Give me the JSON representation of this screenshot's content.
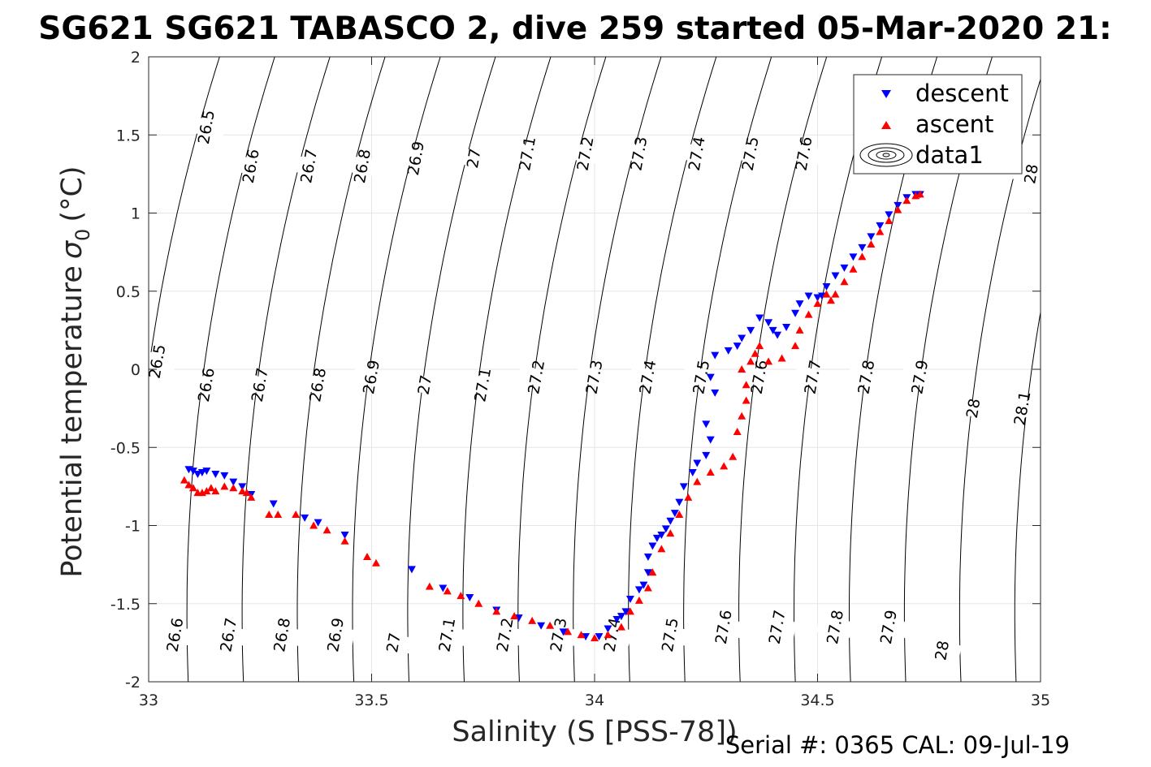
{
  "chart_data": {
    "type": "scatter",
    "title": "SG621 SG621 TABASCO 2, dive 259 started 05-Mar-2020 21:",
    "xlabel": "Salinity (S [PSS-78])",
    "ylabel": "Potential temperature",
    "ylabel_symbol": "σ",
    "ylabel_subscript": "0",
    "ylabel_unit": "(°C)",
    "footer": "Serial #: 0365  CAL: 09-Jul-19",
    "xlim": [
      33,
      35
    ],
    "ylim": [
      -2,
      2
    ],
    "x_ticks": [
      33,
      33.5,
      34,
      34.5,
      35
    ],
    "x_tick_labels": [
      "33",
      "33.5",
      "34",
      "34.5",
      "35"
    ],
    "y_ticks": [
      -2,
      -1.5,
      -1,
      -0.5,
      0,
      0.5,
      1,
      1.5,
      2
    ],
    "y_tick_labels": [
      "-2",
      "-1.5",
      "-1",
      "-0.5",
      "0",
      "0.5",
      "1",
      "1.5",
      "2"
    ],
    "grid": true,
    "legend_position": "top-right",
    "colors": {
      "descent": "#0000ff",
      "ascent": "#ff0000",
      "contour": "#000000",
      "grid": "#e6e6e6"
    },
    "legend": [
      {
        "label": "descent",
        "marker": "triangle-down",
        "color": "#0000ff"
      },
      {
        "label": "ascent",
        "marker": "triangle-up",
        "color": "#ff0000"
      },
      {
        "label": "data1",
        "marker": "contour-icon",
        "color": "#000000"
      }
    ],
    "contours": {
      "levels": [
        26.5,
        26.6,
        26.7,
        26.8,
        26.9,
        27,
        27.1,
        27.2,
        27.3,
        27.4,
        27.5,
        27.6,
        27.7,
        27.8,
        27.9,
        28,
        28.1
      ],
      "labels": [
        {
          "text": "26.5",
          "s": 33.13,
          "t": 1.55
        },
        {
          "text": "26.6",
          "s": 33.23,
          "t": 1.3
        },
        {
          "text": "26.7",
          "s": 33.36,
          "t": 1.3
        },
        {
          "text": "26.8",
          "s": 33.48,
          "t": 1.3
        },
        {
          "text": "26.9",
          "s": 33.6,
          "t": 1.35
        },
        {
          "text": "27",
          "s": 33.73,
          "t": 1.35
        },
        {
          "text": "27.1",
          "s": 33.85,
          "t": 1.38
        },
        {
          "text": "27.2",
          "s": 33.98,
          "t": 1.38
        },
        {
          "text": "27.3",
          "s": 34.1,
          "t": 1.38
        },
        {
          "text": "27.4",
          "s": 34.23,
          "t": 1.38
        },
        {
          "text": "27.5",
          "s": 34.35,
          "t": 1.38
        },
        {
          "text": "27.6",
          "s": 34.47,
          "t": 1.38
        },
        {
          "text": "28",
          "s": 34.98,
          "t": 1.25
        },
        {
          "text": "26.5",
          "s": 33.02,
          "t": 0.05
        },
        {
          "text": "26.6",
          "s": 33.13,
          "t": -0.1
        },
        {
          "text": "26.7",
          "s": 33.25,
          "t": -0.1
        },
        {
          "text": "26.8",
          "s": 33.38,
          "t": -0.1
        },
        {
          "text": "26.9",
          "s": 33.5,
          "t": -0.05
        },
        {
          "text": "27",
          "s": 33.62,
          "t": -0.1
        },
        {
          "text": "27.1",
          "s": 33.75,
          "t": -0.1
        },
        {
          "text": "27.2",
          "s": 33.87,
          "t": -0.05
        },
        {
          "text": "27.3",
          "s": 34.0,
          "t": -0.05
        },
        {
          "text": "27.4",
          "s": 34.12,
          "t": -0.05
        },
        {
          "text": "27.5",
          "s": 34.24,
          "t": -0.05
        },
        {
          "text": "27.6",
          "s": 34.37,
          "t": -0.05
        },
        {
          "text": "27.7",
          "s": 34.49,
          "t": -0.05
        },
        {
          "text": "27.8",
          "s": 34.61,
          "t": -0.05
        },
        {
          "text": "27.9",
          "s": 34.73,
          "t": -0.05
        },
        {
          "text": "28",
          "s": 34.85,
          "t": -0.25
        },
        {
          "text": "28.1",
          "s": 34.96,
          "t": -0.25
        },
        {
          "text": "26.6",
          "s": 33.06,
          "t": -1.7
        },
        {
          "text": "26.7",
          "s": 33.18,
          "t": -1.7
        },
        {
          "text": "26.8",
          "s": 33.3,
          "t": -1.7
        },
        {
          "text": "26.9",
          "s": 33.42,
          "t": -1.7
        },
        {
          "text": "27",
          "s": 33.55,
          "t": -1.75
        },
        {
          "text": "27.1",
          "s": 33.67,
          "t": -1.7
        },
        {
          "text": "27.2",
          "s": 33.8,
          "t": -1.7
        },
        {
          "text": "27.3",
          "s": 33.92,
          "t": -1.7
        },
        {
          "text": "27.4",
          "s": 34.04,
          "t": -1.7
        },
        {
          "text": "27.5",
          "s": 34.17,
          "t": -1.7
        },
        {
          "text": "27.6",
          "s": 34.29,
          "t": -1.65
        },
        {
          "text": "27.7",
          "s": 34.41,
          "t": -1.65
        },
        {
          "text": "27.8",
          "s": 34.54,
          "t": -1.65
        },
        {
          "text": "27.9",
          "s": 34.66,
          "t": -1.65
        },
        {
          "text": "28",
          "s": 34.78,
          "t": -1.8
        }
      ]
    },
    "series": [
      {
        "name": "descent",
        "marker": "triangle-down",
        "color": "#0000ff",
        "points": [
          [
            33.09,
            -0.64
          ],
          [
            33.1,
            -0.65
          ],
          [
            33.11,
            -0.67
          ],
          [
            33.12,
            -0.66
          ],
          [
            33.13,
            -0.65
          ],
          [
            33.15,
            -0.67
          ],
          [
            33.17,
            -0.68
          ],
          [
            33.19,
            -0.72
          ],
          [
            33.21,
            -0.75
          ],
          [
            33.23,
            -0.8
          ],
          [
            33.28,
            -0.86
          ],
          [
            33.35,
            -0.95
          ],
          [
            33.38,
            -0.98
          ],
          [
            33.44,
            -1.06
          ],
          [
            33.59,
            -1.28
          ],
          [
            33.66,
            -1.4
          ],
          [
            33.72,
            -1.46
          ],
          [
            33.78,
            -1.54
          ],
          [
            33.83,
            -1.59
          ],
          [
            33.88,
            -1.64
          ],
          [
            33.93,
            -1.68
          ],
          [
            33.98,
            -1.71
          ],
          [
            34.01,
            -1.71
          ],
          [
            34.03,
            -1.66
          ],
          [
            34.05,
            -1.6
          ],
          [
            34.06,
            -1.58
          ],
          [
            34.07,
            -1.55
          ],
          [
            34.08,
            -1.47
          ],
          [
            34.1,
            -1.41
          ],
          [
            34.11,
            -1.38
          ],
          [
            34.12,
            -1.3
          ],
          [
            34.12,
            -1.2
          ],
          [
            34.13,
            -1.13
          ],
          [
            34.14,
            -1.08
          ],
          [
            34.15,
            -1.06
          ],
          [
            34.16,
            -1.02
          ],
          [
            34.17,
            -0.97
          ],
          [
            34.18,
            -0.92
          ],
          [
            34.19,
            -0.85
          ],
          [
            34.2,
            -0.75
          ],
          [
            34.22,
            -0.66
          ],
          [
            34.23,
            -0.6
          ],
          [
            34.25,
            -0.55
          ],
          [
            34.26,
            -0.45
          ],
          [
            34.25,
            -0.35
          ],
          [
            34.27,
            -0.15
          ],
          [
            34.26,
            -0.05
          ],
          [
            34.27,
            0.09
          ],
          [
            34.3,
            0.12
          ],
          [
            34.32,
            0.15
          ],
          [
            34.33,
            0.2
          ],
          [
            34.35,
            0.25
          ],
          [
            34.37,
            0.33
          ],
          [
            34.39,
            0.3
          ],
          [
            34.4,
            0.25
          ],
          [
            34.41,
            0.22
          ],
          [
            34.43,
            0.27
          ],
          [
            34.45,
            0.36
          ],
          [
            34.46,
            0.42
          ],
          [
            34.48,
            0.47
          ],
          [
            34.5,
            0.46
          ],
          [
            34.51,
            0.47
          ],
          [
            34.52,
            0.53
          ],
          [
            34.54,
            0.6
          ],
          [
            34.56,
            0.65
          ],
          [
            34.58,
            0.72
          ],
          [
            34.6,
            0.78
          ],
          [
            34.62,
            0.85
          ],
          [
            34.64,
            0.92
          ],
          [
            34.66,
            0.99
          ],
          [
            34.68,
            1.05
          ],
          [
            34.7,
            1.1
          ],
          [
            34.72,
            1.12
          ],
          [
            34.73,
            1.12
          ]
        ]
      },
      {
        "name": "ascent",
        "marker": "triangle-up",
        "color": "#ff0000",
        "points": [
          [
            33.08,
            -0.71
          ],
          [
            33.09,
            -0.74
          ],
          [
            33.1,
            -0.76
          ],
          [
            33.11,
            -0.79
          ],
          [
            33.12,
            -0.79
          ],
          [
            33.13,
            -0.78
          ],
          [
            33.14,
            -0.76
          ],
          [
            33.15,
            -0.78
          ],
          [
            33.17,
            -0.75
          ],
          [
            33.19,
            -0.76
          ],
          [
            33.21,
            -0.78
          ],
          [
            33.22,
            -0.79
          ],
          [
            33.23,
            -0.82
          ],
          [
            33.27,
            -0.93
          ],
          [
            33.29,
            -0.93
          ],
          [
            33.33,
            -0.93
          ],
          [
            33.37,
            -1.0
          ],
          [
            33.4,
            -1.03
          ],
          [
            33.44,
            -1.1
          ],
          [
            33.49,
            -1.2
          ],
          [
            33.51,
            -1.24
          ],
          [
            33.63,
            -1.39
          ],
          [
            33.67,
            -1.42
          ],
          [
            33.7,
            -1.45
          ],
          [
            33.74,
            -1.5
          ],
          [
            33.78,
            -1.55
          ],
          [
            33.82,
            -1.58
          ],
          [
            33.86,
            -1.61
          ],
          [
            33.9,
            -1.64
          ],
          [
            33.94,
            -1.68
          ],
          [
            33.97,
            -1.7
          ],
          [
            34.0,
            -1.72
          ],
          [
            34.03,
            -1.7
          ],
          [
            34.06,
            -1.65
          ],
          [
            34.08,
            -1.55
          ],
          [
            34.1,
            -1.48
          ],
          [
            34.12,
            -1.4
          ],
          [
            34.13,
            -1.3
          ],
          [
            34.15,
            -1.15
          ],
          [
            34.17,
            -1.05
          ],
          [
            34.19,
            -0.93
          ],
          [
            34.21,
            -0.82
          ],
          [
            34.23,
            -0.72
          ],
          [
            34.26,
            -0.66
          ],
          [
            34.29,
            -0.62
          ],
          [
            34.31,
            -0.56
          ],
          [
            34.32,
            -0.4
          ],
          [
            34.33,
            -0.3
          ],
          [
            34.34,
            -0.2
          ],
          [
            34.34,
            -0.1
          ],
          [
            34.33,
            0.0
          ],
          [
            34.35,
            0.05
          ],
          [
            34.36,
            0.1
          ],
          [
            34.37,
            0.15
          ],
          [
            34.39,
            0.05
          ],
          [
            34.42,
            0.07
          ],
          [
            34.45,
            0.15
          ],
          [
            34.46,
            0.25
          ],
          [
            34.48,
            0.35
          ],
          [
            34.5,
            0.42
          ],
          [
            34.52,
            0.48
          ],
          [
            34.53,
            0.44
          ],
          [
            34.54,
            0.48
          ],
          [
            34.56,
            0.56
          ],
          [
            34.58,
            0.64
          ],
          [
            34.6,
            0.72
          ],
          [
            34.62,
            0.8
          ],
          [
            34.64,
            0.88
          ],
          [
            34.66,
            0.95
          ],
          [
            34.68,
            1.02
          ],
          [
            34.7,
            1.08
          ],
          [
            34.72,
            1.11
          ],
          [
            34.73,
            1.12
          ]
        ]
      }
    ]
  }
}
